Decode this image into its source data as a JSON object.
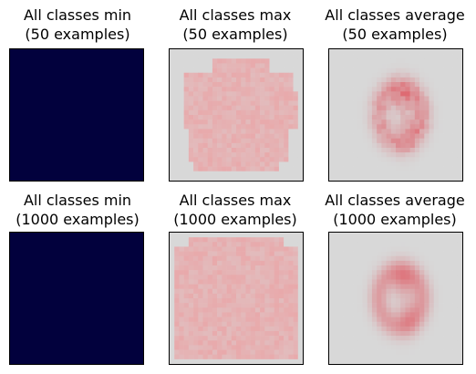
{
  "chart_data": [
    {
      "type": "heatmap",
      "title": "All classes min",
      "subtitle": "(50 examples)",
      "image": "min"
    },
    {
      "type": "heatmap",
      "title": "All classes max",
      "subtitle": "(50 examples)",
      "image": "max"
    },
    {
      "type": "heatmap",
      "title": "All classes average",
      "subtitle": "(50 examples)",
      "image": "average"
    },
    {
      "type": "heatmap",
      "title": "All classes min",
      "subtitle": "(1000 examples)",
      "image": "min"
    },
    {
      "type": "heatmap",
      "title": "All classes max",
      "subtitle": "(1000 examples)",
      "image": "max"
    },
    {
      "type": "heatmap",
      "title": "All classes average",
      "subtitle": "(1000 examples)",
      "image": "average"
    }
  ],
  "colors": {
    "min_fill": "#02013d",
    "background_gray": "#d8d8d8",
    "max_fill": "#eaa4a6",
    "average_ink": "#e0505a"
  }
}
